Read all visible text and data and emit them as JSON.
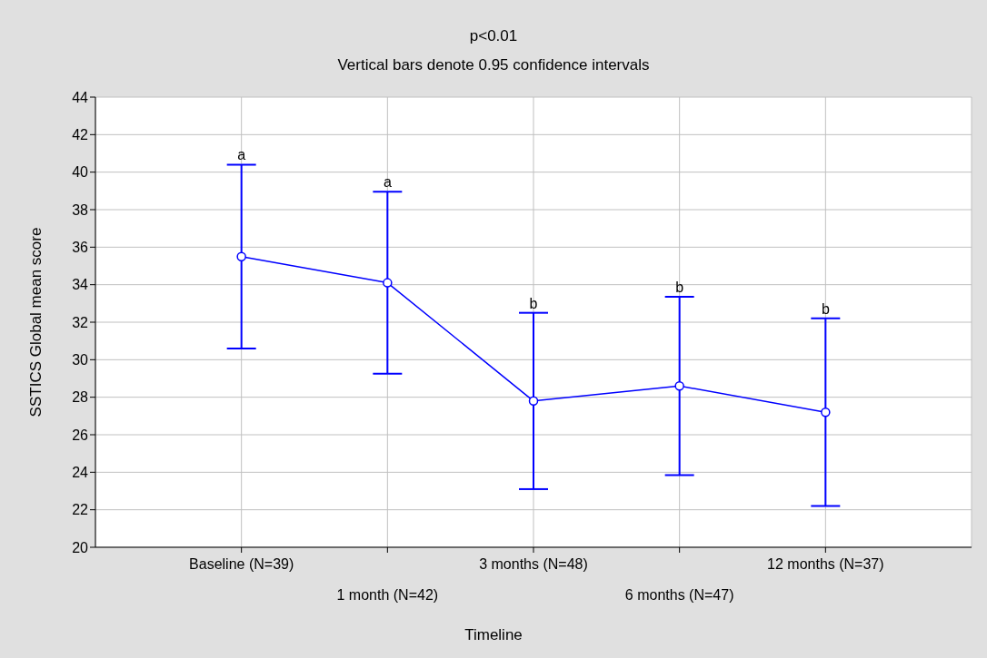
{
  "chart_data": {
    "type": "line",
    "title": "p<0.01",
    "subtitle": "Vertical bars denote 0.95 confidence intervals",
    "xlabel": "Timeline",
    "ylabel": "SSTICS Global mean score",
    "categories": [
      "Baseline (N=39)",
      "1 month (N=42)",
      "3 months (N=48)",
      "6 months (N=47)",
      "12 months (N=37)"
    ],
    "series": [
      {
        "color": "#0000ff",
        "values": [
          35.5,
          34.1,
          27.8,
          28.6,
          27.2
        ],
        "errors": [
          4.9,
          4.85,
          4.7,
          4.75,
          5.0
        ]
      }
    ],
    "ylim": [
      20,
      44
    ],
    "yticks": [
      20,
      22,
      24,
      26,
      28,
      30,
      32,
      34,
      36,
      38,
      40,
      42,
      44
    ],
    "grid": true,
    "marker": "circle",
    "line_style": "solid",
    "annotations": [
      {
        "text": "a",
        "x": "Baseline (N=39)",
        "y": 40.4
      },
      {
        "text": "a",
        "x": "1 month (N=42)",
        "y": 38.95
      },
      {
        "text": "b",
        "x": "3 months (N=48)",
        "y": 32.5
      },
      {
        "text": "b",
        "x": "6 months (N=47)",
        "y": 33.35
      },
      {
        "text": "b",
        "x": "12 months (N=37)",
        "y": 32.2
      }
    ]
  }
}
